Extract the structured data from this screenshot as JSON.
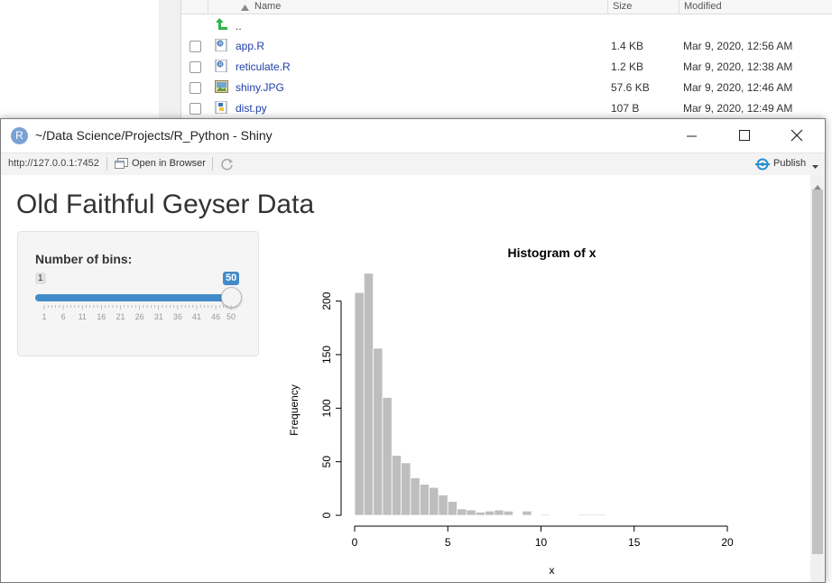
{
  "files": {
    "columns": {
      "name": "Name",
      "size": "Size",
      "modified": "Modified"
    },
    "parent_label": "..",
    "rows": [
      {
        "name": "app.R",
        "size": "1.4 KB",
        "modified": "Mar 9, 2020, 12:56 AM",
        "icon": "r-file-icon"
      },
      {
        "name": "reticulate.R",
        "size": "1.2 KB",
        "modified": "Mar 9, 2020, 12:38 AM",
        "icon": "r-file-icon"
      },
      {
        "name": "shiny.JPG",
        "size": "57.6 KB",
        "modified": "Mar 9, 2020, 12:46 AM",
        "icon": "image-file-icon"
      },
      {
        "name": "dist.py",
        "size": "107 B",
        "modified": "Mar 9, 2020, 12:49 AM",
        "icon": "python-file-icon"
      }
    ]
  },
  "window": {
    "title": "~/Data Science/Projects/R_Python - Shiny",
    "icon_letter": "R"
  },
  "toolbar": {
    "url": "http://127.0.0.1:7452",
    "open_in_browser": "Open in Browser",
    "publish": "Publish"
  },
  "app": {
    "title": "Old Faithful Geyser Data",
    "slider": {
      "label": "Number of bins:",
      "min": "1",
      "max": 50,
      "value": "50",
      "ticks": [
        "1",
        "6",
        "11",
        "16",
        "21",
        "26",
        "31",
        "36",
        "41",
        "46",
        "50"
      ]
    }
  },
  "chart_data": {
    "type": "bar",
    "title": "Histogram of x",
    "xlabel": "x",
    "ylabel": "Frequency",
    "xlim": [
      0,
      20
    ],
    "ylim": [
      0,
      230
    ],
    "xticks": [
      0,
      5,
      10,
      15,
      20
    ],
    "yticks": [
      0,
      50,
      100,
      150,
      200
    ],
    "bin_width": 0.5,
    "bin_starts": [
      0,
      0.5,
      1,
      1.5,
      2,
      2.5,
      3,
      3.5,
      4,
      4.5,
      5,
      5.5,
      6,
      6.5,
      7,
      7.5,
      8,
      8.5,
      9,
      9.5,
      10,
      10.5,
      11,
      11.5,
      12,
      12.5,
      13
    ],
    "values": [
      208,
      226,
      156,
      110,
      56,
      49,
      35,
      29,
      26,
      19,
      13,
      6,
      5,
      3,
      4,
      5,
      4,
      0,
      4,
      0,
      1,
      0,
      0,
      0,
      1,
      1,
      1
    ],
    "bar_color": "#bebebe",
    "grid": false
  }
}
